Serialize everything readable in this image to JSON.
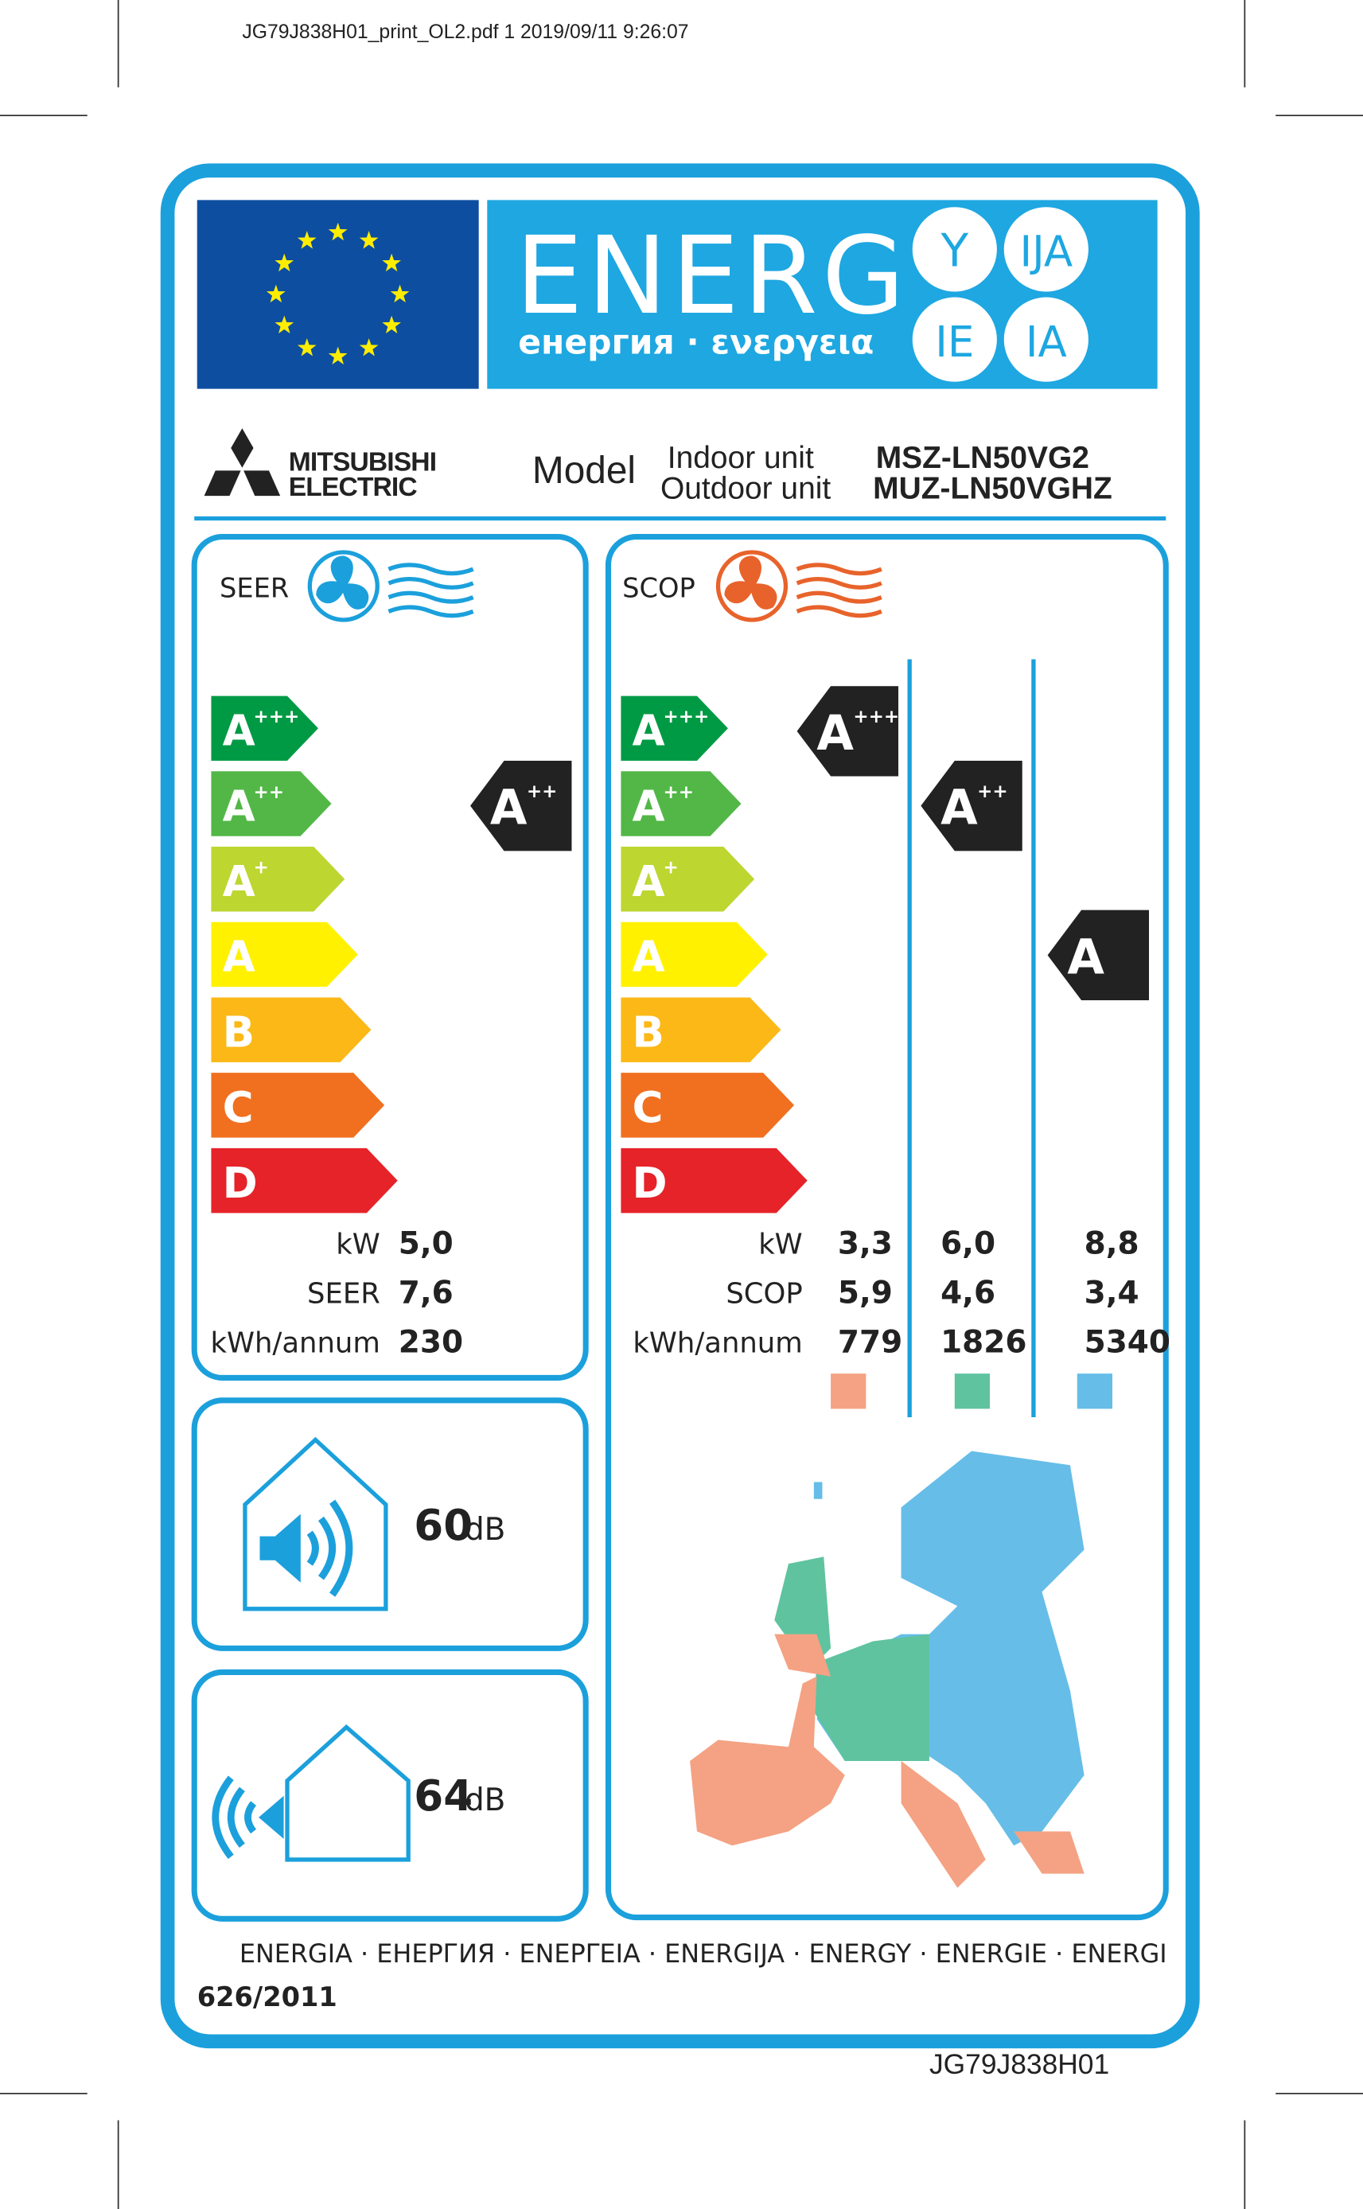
{
  "header": {
    "print_info": "JG79J838H01_print_OL2.pdf  1  2019/09/11  9:26:07"
  },
  "energy_banner": {
    "title": "ENERG",
    "subtitle": "енергия · ενεργεια",
    "suffixes": [
      "Y",
      "IJA",
      "IE",
      "IA"
    ]
  },
  "supplier": {
    "brand": [
      "MITSUBISHI",
      "ELECTRIC"
    ]
  },
  "model": {
    "label": "Model",
    "indoor_label": "Indoor unit",
    "outdoor_label": "Outdoor unit",
    "indoor": "MSZ-LN50VG2",
    "outdoor": "MUZ-LN50VGHZ"
  },
  "scale": [
    {
      "letter": "A",
      "sup": "+++"
    },
    {
      "letter": "A",
      "sup": "++"
    },
    {
      "letter": "A",
      "sup": "+"
    },
    {
      "letter": "A"
    },
    {
      "letter": "B"
    },
    {
      "letter": "C"
    },
    {
      "letter": "D"
    }
  ],
  "cooling": {
    "label": "SEER",
    "rating": {
      "letter": "A",
      "sup": "++"
    },
    "rows": [
      {
        "label": "kW",
        "value": "5,0"
      },
      {
        "label": "SEER",
        "value": "7,6"
      },
      {
        "label": "kWh/annum",
        "value": "230"
      }
    ]
  },
  "heating": {
    "label": "SCOP",
    "ratings": [
      {
        "letter": "A",
        "sup": "+++"
      },
      {
        "letter": "A",
        "sup": "++"
      },
      {
        "letter": "A"
      }
    ],
    "rows": [
      {
        "label": "kW",
        "values": [
          "3,3",
          "6,0",
          "8,8"
        ]
      },
      {
        "label": "SCOP",
        "values": [
          "5,9",
          "4,6",
          "3,4"
        ]
      },
      {
        "label": "kWh/annum",
        "values": [
          "779",
          "1826",
          "5340"
        ]
      }
    ]
  },
  "noise": {
    "indoor": {
      "value": "60",
      "unit": "dB"
    },
    "outdoor": {
      "value": "64",
      "unit": "dB"
    }
  },
  "footer": {
    "languages": "ENERGIA · ЕНЕРГИЯ · ΕΝΕΡΓΕΙΑ · ENERGIJA · ENERGY · ENERGIE · ENERGI",
    "regulation": "626/2011",
    "code": "JG79J838H01"
  }
}
